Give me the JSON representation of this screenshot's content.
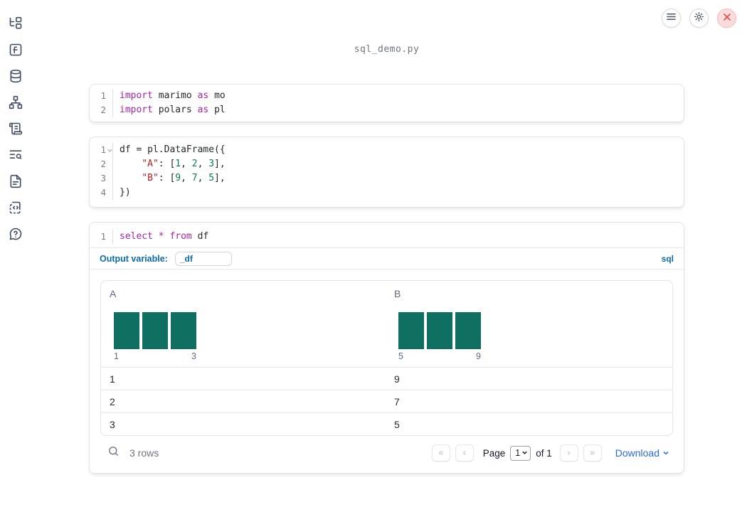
{
  "app": {
    "title": "sql_demo.py"
  },
  "topbar": {
    "buttons": [
      {
        "icon": "menu-icon"
      },
      {
        "icon": "gear-icon"
      },
      {
        "icon": "close-icon"
      }
    ]
  },
  "sidebar": {
    "items": [
      {
        "icon": "file-tree-icon"
      },
      {
        "icon": "variables-icon"
      },
      {
        "icon": "database-icon"
      },
      {
        "icon": "dependency-graph-icon"
      },
      {
        "icon": "scroll-icon"
      },
      {
        "icon": "text-search-icon"
      },
      {
        "icon": "document-icon"
      },
      {
        "icon": "snippets-icon"
      },
      {
        "icon": "help-bubble-icon"
      }
    ]
  },
  "code_cells": [
    {
      "name": "imports-cell",
      "lines": [
        {
          "n": "1",
          "tokens": [
            [
              "kw",
              "import"
            ],
            [
              "pl",
              " marimo "
            ],
            [
              "kw",
              "as"
            ],
            [
              "pl",
              " mo"
            ]
          ]
        },
        {
          "n": "2",
          "tokens": [
            [
              "kw",
              "import"
            ],
            [
              "pl",
              " polars "
            ],
            [
              "kw",
              "as"
            ],
            [
              "pl",
              " pl"
            ]
          ]
        }
      ]
    },
    {
      "name": "dataframe-cell",
      "lines": [
        {
          "n": "1",
          "fold": true,
          "tokens": [
            [
              "pl",
              "df = pl.DataFrame({"
            ]
          ]
        },
        {
          "n": "2",
          "tokens": [
            [
              "pl",
              "    "
            ],
            [
              "str",
              "\"A\""
            ],
            [
              "pl",
              ": ["
            ],
            [
              "num",
              "1"
            ],
            [
              "pl",
              ", "
            ],
            [
              "num",
              "2"
            ],
            [
              "pl",
              ", "
            ],
            [
              "num",
              "3"
            ],
            [
              "pl",
              "],"
            ]
          ]
        },
        {
          "n": "3",
          "tokens": [
            [
              "pl",
              "    "
            ],
            [
              "str",
              "\"B\""
            ],
            [
              "pl",
              ": ["
            ],
            [
              "num",
              "9"
            ],
            [
              "pl",
              ", "
            ],
            [
              "num",
              "7"
            ],
            [
              "pl",
              ", "
            ],
            [
              "num",
              "5"
            ],
            [
              "pl",
              "],"
            ]
          ]
        },
        {
          "n": "4",
          "tokens": [
            [
              "pl",
              "})"
            ]
          ]
        }
      ]
    },
    {
      "name": "sql-cell",
      "lines": [
        {
          "n": "1",
          "tokens": [
            [
              "kw",
              "select"
            ],
            [
              "pl",
              " "
            ],
            [
              "kw",
              "*"
            ],
            [
              "pl",
              " "
            ],
            [
              "kw",
              "from"
            ],
            [
              "pl",
              " df"
            ]
          ]
        }
      ]
    }
  ],
  "sql_cell": {
    "output_variable_label": "Output variable:",
    "output_variable_value": "_df",
    "language_badge": "sql"
  },
  "table": {
    "columns": [
      {
        "name": "A",
        "hist": {
          "bars": [
            1,
            1,
            1
          ],
          "min_label": "1",
          "max_label": "3"
        }
      },
      {
        "name": "B",
        "hist": {
          "bars": [
            1,
            1,
            1
          ],
          "min_label": "5",
          "max_label": "9"
        }
      }
    ],
    "rows": [
      [
        "1",
        "9"
      ],
      [
        "2",
        "7"
      ],
      [
        "3",
        "5"
      ]
    ],
    "footer": {
      "row_count": "3 rows",
      "first_page": "«",
      "prev_page": "‹",
      "page_label": "Page",
      "page_value": "1",
      "of_label": "of 1",
      "next_page": "›",
      "last_page": "»",
      "download_label": "Download"
    }
  },
  "colors": {
    "accent_blue": "#0c6cab",
    "download_blue": "#2a6bdb",
    "histogram_teal": "#0e6e60",
    "keyword_purple": "#a626a4",
    "string_red": "#b42020",
    "number_green": "#0f7950",
    "close_red": "#e05252"
  }
}
